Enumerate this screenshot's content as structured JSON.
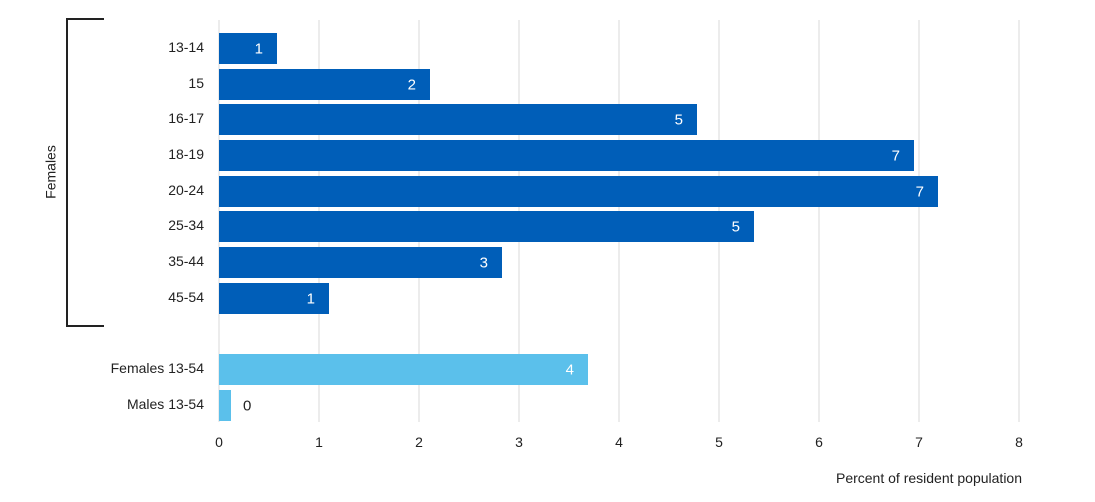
{
  "chart_data": {
    "type": "bar",
    "orientation": "horizontal",
    "xlabel": "Percent of resident population",
    "xlim": [
      0,
      8
    ],
    "xticks": [
      0,
      1,
      2,
      3,
      4,
      5,
      6,
      7,
      8
    ],
    "grid": "vertical",
    "group_label": "Females",
    "colors": {
      "dark": "#005EB8",
      "light": "#5BC0EB"
    },
    "categories": [
      "13-14",
      "15",
      "16-17",
      "18-19",
      "20-24",
      "25-34",
      "35-44",
      "45-54",
      "Females 13-54",
      "Males 13-54"
    ],
    "values": [
      0.58,
      2.11,
      4.78,
      6.95,
      7.19,
      5.35,
      2.83,
      1.1,
      3.69,
      0.12
    ],
    "labels": [
      "1",
      "2",
      "5",
      "7",
      "7",
      "5",
      "3",
      "1",
      "4",
      "0"
    ],
    "series_color": [
      "dark",
      "dark",
      "dark",
      "dark",
      "dark",
      "dark",
      "dark",
      "dark",
      "light",
      "light"
    ]
  }
}
